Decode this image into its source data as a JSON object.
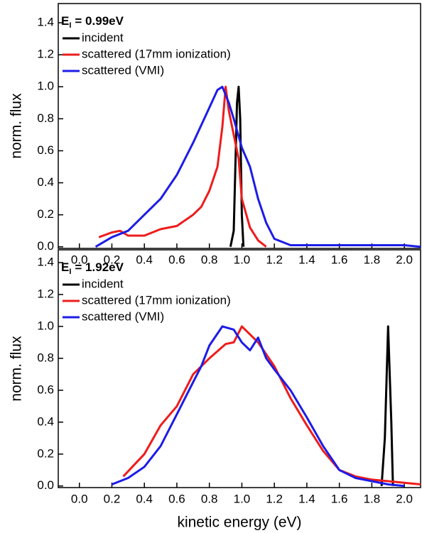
{
  "chart_data": [
    {
      "type": "line",
      "y_label": "norm. flux",
      "annotation": {
        "symbol": "E",
        "subscript": "I",
        "text": "= 0.99eV"
      },
      "xlim": [
        -0.13,
        2.1
      ],
      "ylim": [
        -0.01,
        1.52
      ],
      "xticks": [
        {
          "value": 0,
          "label": "0.0"
        },
        0.2,
        0.4,
        0.6,
        0.8,
        {
          "value": 1,
          "label": "1.0"
        },
        1.2,
        1.4,
        1.6,
        1.8,
        {
          "value": 2,
          "label": "2.0"
        }
      ],
      "yticks": [
        {
          "value": 0,
          "label": "0.0"
        },
        0.2,
        0.4,
        0.6,
        0.8,
        {
          "value": 1,
          "label": "1.0"
        },
        1.2,
        1.4
      ],
      "series": [
        {
          "name": "incident",
          "color": "#000000",
          "x": [
            0.93,
            0.95,
            0.97,
            0.98,
            0.99,
            1.0,
            1.01
          ],
          "values": [
            0,
            0.1,
            0.9,
            1.0,
            0.8,
            0.2,
            0
          ]
        },
        {
          "name": "scattered (17mm ionization)",
          "color": "#ee1c1c",
          "x": [
            0.12,
            0.2,
            0.25,
            0.3,
            0.4,
            0.5,
            0.6,
            0.7,
            0.75,
            0.8,
            0.85,
            0.88,
            0.9,
            0.92,
            0.95,
            0.98,
            1.0,
            1.05,
            1.1,
            1.15
          ],
          "values": [
            0.06,
            0.09,
            0.1,
            0.07,
            0.07,
            0.11,
            0.13,
            0.2,
            0.25,
            0.35,
            0.5,
            0.75,
            1.0,
            0.85,
            0.7,
            0.55,
            0.3,
            0.12,
            0.04,
            0.0
          ]
        },
        {
          "name": "scattered (VMI)",
          "color": "#1c1ce8",
          "x": [
            0.1,
            0.2,
            0.3,
            0.4,
            0.5,
            0.6,
            0.7,
            0.8,
            0.85,
            0.88,
            0.92,
            0.95,
            1.0,
            1.05,
            1.1,
            1.15,
            1.2,
            1.3,
            1.5,
            2.0,
            2.1
          ],
          "values": [
            0.0,
            0.06,
            0.1,
            0.2,
            0.3,
            0.45,
            0.65,
            0.87,
            0.98,
            1.0,
            0.9,
            0.8,
            0.62,
            0.5,
            0.3,
            0.15,
            0.05,
            0.01,
            0.01,
            0.01,
            0.0
          ]
        }
      ]
    },
    {
      "type": "line",
      "y_label": "norm. flux",
      "x_label": "kinetic energy (eV)",
      "annotation": {
        "symbol": "E",
        "subscript": "I",
        "text": "= 1.92eV"
      },
      "xlim": [
        -0.13,
        2.1
      ],
      "ylim": [
        -0.01,
        1.48
      ],
      "xticks": [
        {
          "value": 0,
          "label": "0.0"
        },
        0.2,
        0.4,
        0.6,
        0.8,
        {
          "value": 1,
          "label": "1.0"
        },
        1.2,
        1.4,
        1.6,
        1.8,
        {
          "value": 2,
          "label": "2.0"
        }
      ],
      "yticks": [
        {
          "value": 0,
          "label": "0.0"
        },
        0.2,
        0.4,
        0.6,
        0.8,
        {
          "value": 1,
          "label": "1.0"
        },
        1.2,
        1.4
      ],
      "series": [
        {
          "name": "incident",
          "color": "#000000",
          "x": [
            1.86,
            1.88,
            1.9,
            1.92,
            1.93
          ],
          "values": [
            0,
            0.3,
            1.0,
            0.4,
            0
          ]
        },
        {
          "name": "scattered (17mm ionization)",
          "color": "#ee1c1c",
          "x": [
            0.27,
            0.4,
            0.5,
            0.6,
            0.7,
            0.8,
            0.9,
            0.95,
            1.0,
            1.05,
            1.1,
            1.2,
            1.3,
            1.4,
            1.5,
            1.6,
            1.7,
            1.8,
            1.9,
            2.1
          ],
          "values": [
            0.06,
            0.2,
            0.38,
            0.5,
            0.7,
            0.8,
            0.89,
            0.9,
            1.0,
            0.95,
            0.9,
            0.75,
            0.55,
            0.38,
            0.22,
            0.1,
            0.06,
            0.04,
            0.03,
            0.01
          ]
        },
        {
          "name": "scattered (VMI)",
          "color": "#1c1ce8",
          "x": [
            0.2,
            0.3,
            0.4,
            0.5,
            0.6,
            0.7,
            0.75,
            0.8,
            0.88,
            0.95,
            1.0,
            1.05,
            1.1,
            1.15,
            1.2,
            1.3,
            1.4,
            1.5,
            1.6,
            1.7,
            1.8,
            1.9,
            2.0
          ],
          "values": [
            0.01,
            0.05,
            0.12,
            0.25,
            0.45,
            0.65,
            0.75,
            0.88,
            1.0,
            0.98,
            0.9,
            0.85,
            0.93,
            0.8,
            0.73,
            0.6,
            0.43,
            0.25,
            0.1,
            0.05,
            0.03,
            0.01,
            0.0
          ]
        }
      ]
    }
  ]
}
